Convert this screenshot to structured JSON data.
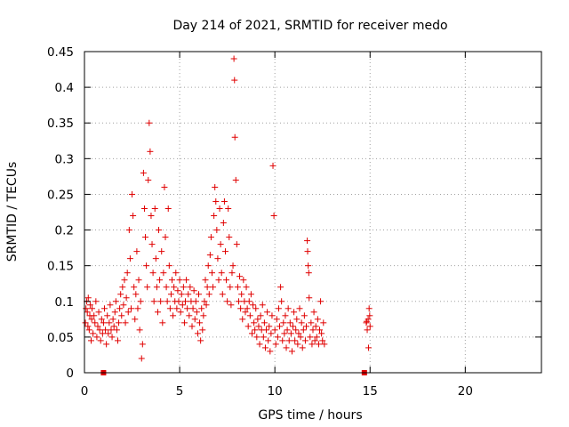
{
  "chart_data": {
    "type": "scatter",
    "title": "Day 214 of 2021, SRMTID for receiver medo",
    "xlabel": "GPS time / hours",
    "ylabel": "SRMTID / TECUs",
    "xlim": [
      0,
      24
    ],
    "ylim": [
      0,
      0.45
    ],
    "x_ticks": [
      0,
      5,
      10,
      15,
      20
    ],
    "y_ticks": [
      0,
      0.05,
      0.1,
      0.15,
      0.2,
      0.25,
      0.3,
      0.35,
      0.4,
      0.45
    ],
    "x_tick_labels": [
      "0",
      "5",
      "10",
      "15",
      "20"
    ],
    "y_tick_labels": [
      "0",
      "0.05",
      "0.1",
      "0.15",
      "0.2",
      "0.25",
      "0.3",
      "0.35",
      "0.4",
      "0.45"
    ],
    "grid": true,
    "marker": "plus",
    "color": "#e00000",
    "points": [
      [
        0.05,
        0.07
      ],
      [
        0.08,
        0.09
      ],
      [
        0.12,
        0.1
      ],
      [
        0.15,
        0.085
      ],
      [
        0.18,
        0.065
      ],
      [
        0.2,
        0.105
      ],
      [
        0.25,
        0.06
      ],
      [
        0.28,
        0.08
      ],
      [
        0.3,
        0.095
      ],
      [
        0.35,
        0.045
      ],
      [
        0.38,
        0.075
      ],
      [
        0.4,
        0.09
      ],
      [
        0.45,
        0.055
      ],
      [
        0.5,
        0.08
      ],
      [
        0.55,
        0.07
      ],
      [
        0.6,
        0.1
      ],
      [
        0.65,
        0.05
      ],
      [
        0.7,
        0.065
      ],
      [
        0.75,
        0.085
      ],
      [
        0.8,
        0.06
      ],
      [
        0.85,
        0.045
      ],
      [
        0.9,
        0.075
      ],
      [
        0.95,
        0.055
      ],
      [
        1.0,
        0.07
      ],
      [
        1.05,
        0.09
      ],
      [
        1.1,
        0.06
      ],
      [
        1.15,
        0.04
      ],
      [
        1.2,
        0.08
      ],
      [
        1.25,
        0.055
      ],
      [
        1.3,
        0.07
      ],
      [
        1.35,
        0.095
      ],
      [
        1.4,
        0.06
      ],
      [
        1.45,
        0.05
      ],
      [
        1.5,
        0.075
      ],
      [
        1.55,
        0.065
      ],
      [
        1.6,
        0.085
      ],
      [
        1.65,
        0.1
      ],
      [
        1.7,
        0.06
      ],
      [
        1.75,
        0.045
      ],
      [
        1.8,
        0.07
      ],
      [
        1.85,
        0.09
      ],
      [
        1.9,
        0.11
      ],
      [
        1.95,
        0.08
      ],
      [
        2.0,
        0.12
      ],
      [
        2.05,
        0.095
      ],
      [
        2.1,
        0.13
      ],
      [
        2.15,
        0.07
      ],
      [
        2.2,
        0.105
      ],
      [
        2.25,
        0.14
      ],
      [
        2.3,
        0.085
      ],
      [
        2.35,
        0.2
      ],
      [
        2.4,
        0.16
      ],
      [
        2.45,
        0.09
      ],
      [
        2.5,
        0.25
      ],
      [
        2.55,
        0.22
      ],
      [
        2.6,
        0.12
      ],
      [
        2.65,
        0.075
      ],
      [
        2.7,
        0.11
      ],
      [
        2.75,
        0.17
      ],
      [
        2.8,
        0.09
      ],
      [
        2.85,
        0.13
      ],
      [
        2.9,
        0.06
      ],
      [
        2.95,
        0.1
      ],
      [
        3.0,
        0.02
      ],
      [
        3.05,
        0.04
      ],
      [
        3.1,
        0.28
      ],
      [
        3.15,
        0.23
      ],
      [
        3.2,
        0.19
      ],
      [
        3.25,
        0.15
      ],
      [
        3.3,
        0.12
      ],
      [
        3.35,
        0.27
      ],
      [
        3.4,
        0.35
      ],
      [
        3.45,
        0.31
      ],
      [
        3.5,
        0.22
      ],
      [
        3.55,
        0.18
      ],
      [
        3.6,
        0.14
      ],
      [
        3.65,
        0.1
      ],
      [
        3.7,
        0.23
      ],
      [
        3.75,
        0.16
      ],
      [
        3.8,
        0.12
      ],
      [
        3.85,
        0.085
      ],
      [
        3.9,
        0.2
      ],
      [
        3.95,
        0.13
      ],
      [
        4.0,
        0.1
      ],
      [
        4.05,
        0.17
      ],
      [
        4.1,
        0.07
      ],
      [
        4.15,
        0.14
      ],
      [
        4.2,
        0.26
      ],
      [
        4.25,
        0.19
      ],
      [
        4.3,
        0.12
      ],
      [
        4.35,
        0.1
      ],
      [
        4.4,
        0.23
      ],
      [
        4.45,
        0.15
      ],
      [
        4.5,
        0.09
      ],
      [
        4.55,
        0.11
      ],
      [
        4.6,
        0.13
      ],
      [
        4.65,
        0.08
      ],
      [
        4.7,
        0.12
      ],
      [
        4.75,
        0.1
      ],
      [
        4.8,
        0.14
      ],
      [
        4.85,
        0.09
      ],
      [
        4.9,
        0.115
      ],
      [
        4.95,
        0.1
      ],
      [
        5.0,
        0.13
      ],
      [
        5.05,
        0.085
      ],
      [
        5.1,
        0.11
      ],
      [
        5.15,
        0.095
      ],
      [
        5.2,
        0.12
      ],
      [
        5.25,
        0.07
      ],
      [
        5.3,
        0.1
      ],
      [
        5.35,
        0.13
      ],
      [
        5.4,
        0.09
      ],
      [
        5.45,
        0.11
      ],
      [
        5.5,
        0.08
      ],
      [
        5.55,
        0.12
      ],
      [
        5.6,
        0.1
      ],
      [
        5.65,
        0.065
      ],
      [
        5.7,
        0.09
      ],
      [
        5.75,
        0.115
      ],
      [
        5.8,
        0.075
      ],
      [
        5.85,
        0.1
      ],
      [
        5.9,
        0.085
      ],
      [
        5.95,
        0.055
      ],
      [
        6.0,
        0.11
      ],
      [
        6.05,
        0.07
      ],
      [
        6.1,
        0.045
      ],
      [
        6.15,
        0.09
      ],
      [
        6.2,
        0.06
      ],
      [
        6.25,
        0.08
      ],
      [
        6.3,
        0.1
      ],
      [
        6.35,
        0.13
      ],
      [
        6.4,
        0.095
      ],
      [
        6.45,
        0.12
      ],
      [
        6.5,
        0.15
      ],
      [
        6.55,
        0.11
      ],
      [
        6.6,
        0.165
      ],
      [
        6.65,
        0.19
      ],
      [
        6.7,
        0.14
      ],
      [
        6.75,
        0.12
      ],
      [
        6.8,
        0.22
      ],
      [
        6.85,
        0.26
      ],
      [
        6.9,
        0.24
      ],
      [
        6.95,
        0.2
      ],
      [
        7.0,
        0.16
      ],
      [
        7.05,
        0.13
      ],
      [
        7.1,
        0.23
      ],
      [
        7.15,
        0.18
      ],
      [
        7.2,
        0.14
      ],
      [
        7.25,
        0.11
      ],
      [
        7.3,
        0.21
      ],
      [
        7.35,
        0.24
      ],
      [
        7.4,
        0.17
      ],
      [
        7.45,
        0.13
      ],
      [
        7.5,
        0.1
      ],
      [
        7.55,
        0.23
      ],
      [
        7.6,
        0.19
      ],
      [
        7.65,
        0.12
      ],
      [
        7.7,
        0.095
      ],
      [
        7.75,
        0.14
      ],
      [
        7.8,
        0.15
      ],
      [
        7.85,
        0.44
      ],
      [
        7.88,
        0.41
      ],
      [
        7.9,
        0.33
      ],
      [
        7.95,
        0.27
      ],
      [
        8.0,
        0.18
      ],
      [
        8.05,
        0.12
      ],
      [
        8.1,
        0.1
      ],
      [
        8.15,
        0.135
      ],
      [
        8.2,
        0.09
      ],
      [
        8.25,
        0.11
      ],
      [
        8.3,
        0.075
      ],
      [
        8.35,
        0.13
      ],
      [
        8.4,
        0.1
      ],
      [
        8.45,
        0.085
      ],
      [
        8.5,
        0.12
      ],
      [
        8.55,
        0.09
      ],
      [
        8.6,
        0.065
      ],
      [
        8.65,
        0.1
      ],
      [
        8.7,
        0.08
      ],
      [
        8.75,
        0.11
      ],
      [
        8.8,
        0.055
      ],
      [
        8.85,
        0.095
      ],
      [
        8.9,
        0.07
      ],
      [
        8.95,
        0.06
      ],
      [
        9.0,
        0.09
      ],
      [
        9.05,
        0.05
      ],
      [
        9.1,
        0.075
      ],
      [
        9.15,
        0.065
      ],
      [
        9.2,
        0.04
      ],
      [
        9.25,
        0.08
      ],
      [
        9.3,
        0.06
      ],
      [
        9.35,
        0.095
      ],
      [
        9.4,
        0.05
      ],
      [
        9.45,
        0.07
      ],
      [
        9.5,
        0.035
      ],
      [
        9.55,
        0.06
      ],
      [
        9.6,
        0.085
      ],
      [
        9.65,
        0.045
      ],
      [
        9.7,
        0.065
      ],
      [
        9.75,
        0.03
      ],
      [
        9.8,
        0.055
      ],
      [
        9.85,
        0.08
      ],
      [
        9.9,
        0.29
      ],
      [
        9.95,
        0.22
      ],
      [
        10.0,
        0.06
      ],
      [
        10.05,
        0.04
      ],
      [
        10.1,
        0.075
      ],
      [
        10.15,
        0.05
      ],
      [
        10.2,
        0.09
      ],
      [
        10.25,
        0.065
      ],
      [
        10.3,
        0.12
      ],
      [
        10.35,
        0.1
      ],
      [
        10.4,
        0.045
      ],
      [
        10.45,
        0.07
      ],
      [
        10.5,
        0.055
      ],
      [
        10.55,
        0.08
      ],
      [
        10.6,
        0.035
      ],
      [
        10.65,
        0.06
      ],
      [
        10.7,
        0.09
      ],
      [
        10.75,
        0.045
      ],
      [
        10.8,
        0.07
      ],
      [
        10.85,
        0.055
      ],
      [
        10.9,
        0.03
      ],
      [
        10.95,
        0.065
      ],
      [
        11.0,
        0.085
      ],
      [
        11.05,
        0.045
      ],
      [
        11.1,
        0.06
      ],
      [
        11.15,
        0.075
      ],
      [
        11.2,
        0.04
      ],
      [
        11.25,
        0.055
      ],
      [
        11.3,
        0.09
      ],
      [
        11.35,
        0.05
      ],
      [
        11.4,
        0.07
      ],
      [
        11.45,
        0.035
      ],
      [
        11.5,
        0.06
      ],
      [
        11.55,
        0.08
      ],
      [
        11.6,
        0.045
      ],
      [
        11.65,
        0.065
      ],
      [
        11.7,
        0.185
      ],
      [
        11.72,
        0.17
      ],
      [
        11.75,
        0.15
      ],
      [
        11.78,
        0.14
      ],
      [
        11.8,
        0.105
      ],
      [
        11.85,
        0.05
      ],
      [
        11.9,
        0.07
      ],
      [
        11.95,
        0.04
      ],
      [
        12.0,
        0.06
      ],
      [
        12.05,
        0.085
      ],
      [
        12.1,
        0.045
      ],
      [
        12.15,
        0.065
      ],
      [
        12.2,
        0.05
      ],
      [
        12.25,
        0.075
      ],
      [
        12.3,
        0.04
      ],
      [
        12.35,
        0.06
      ],
      [
        12.4,
        0.1
      ],
      [
        12.45,
        0.055
      ],
      [
        12.5,
        0.045
      ],
      [
        12.55,
        0.07
      ],
      [
        12.6,
        0.04
      ],
      [
        14.8,
        0.07
      ],
      [
        14.85,
        0.06
      ],
      [
        14.9,
        0.075
      ],
      [
        14.92,
        0.035
      ],
      [
        14.95,
        0.09
      ],
      [
        14.98,
        0.08
      ],
      [
        15.0,
        0.065
      ],
      [
        14.82,
        0.072
      ]
    ],
    "zero_markers_x": [
      1.0,
      14.7
    ]
  }
}
